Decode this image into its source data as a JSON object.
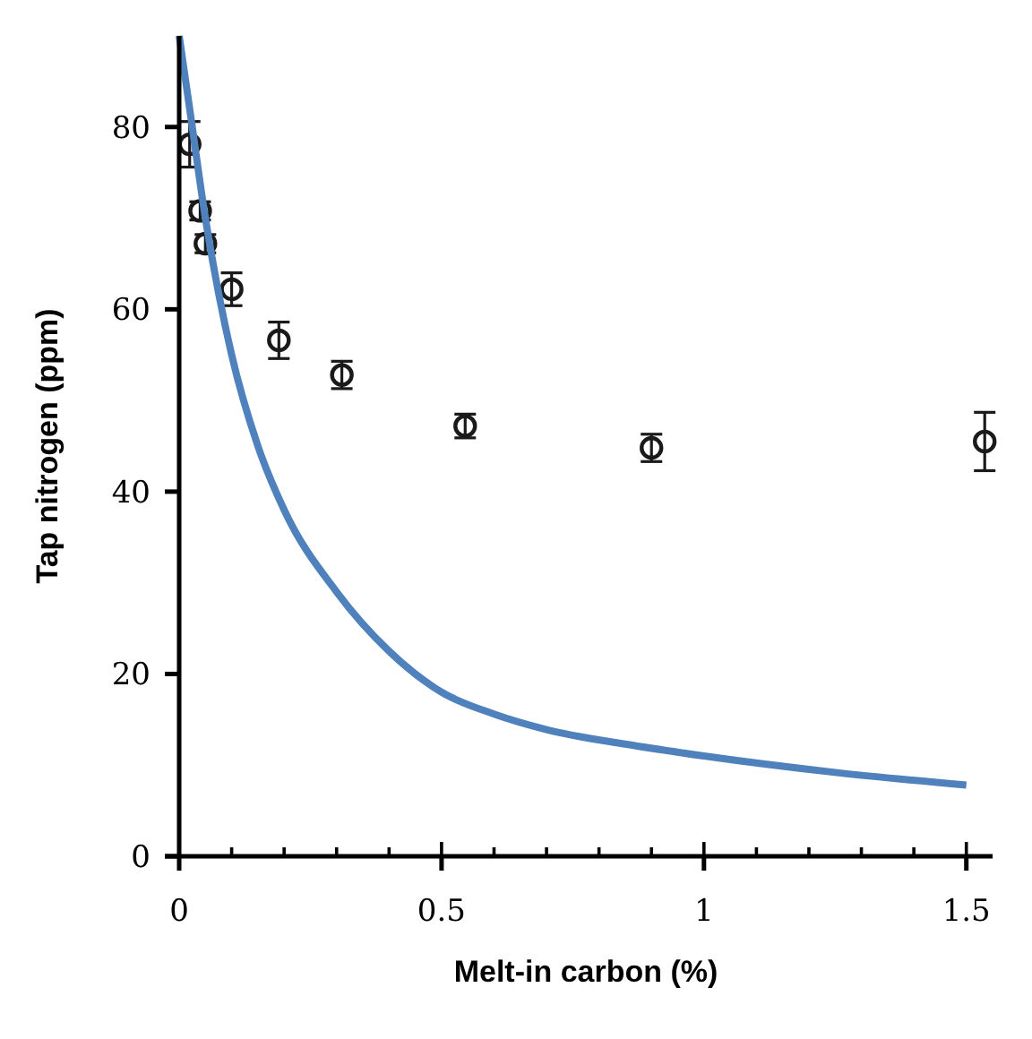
{
  "chart_data": {
    "type": "scatter",
    "xlabel": "Melt-in carbon (%)",
    "ylabel": "Tap nitrogen (ppm)",
    "xlim": [
      0,
      1.55
    ],
    "ylim": [
      0,
      90
    ],
    "xticks": [
      0,
      0.5,
      1,
      1.5
    ],
    "yticks": [
      0,
      20,
      40,
      60,
      80
    ],
    "grid": false,
    "series": [
      {
        "color": "#1a1a1a",
        "marker": "circle",
        "x": [
          0.02,
          0.04,
          0.05,
          0.1,
          0.19,
          0.31,
          0.545,
          0.9,
          1.535
        ],
        "values": [
          78.1,
          70.8,
          67.2,
          62.2,
          56.6,
          52.8,
          47.2,
          44.8,
          45.5
        ],
        "errors": [
          2.5,
          1,
          1,
          1.8,
          2,
          1.5,
          1.3,
          1.5,
          3.2
        ]
      },
      {
        "type": "line",
        "color": "#4f81bd",
        "line_style": "solid",
        "x": [
          0,
          0.02,
          0.05,
          0.1,
          0.15,
          0.2,
          0.3,
          0.4,
          0.5,
          0.6,
          0.7,
          0.85,
          1,
          1.25,
          1.5
        ],
        "values": [
          90,
          82,
          70,
          55,
          45,
          38,
          29,
          22.5,
          18,
          15.6,
          13.9,
          12.3,
          11,
          9.2,
          7.8
        ]
      }
    ]
  }
}
